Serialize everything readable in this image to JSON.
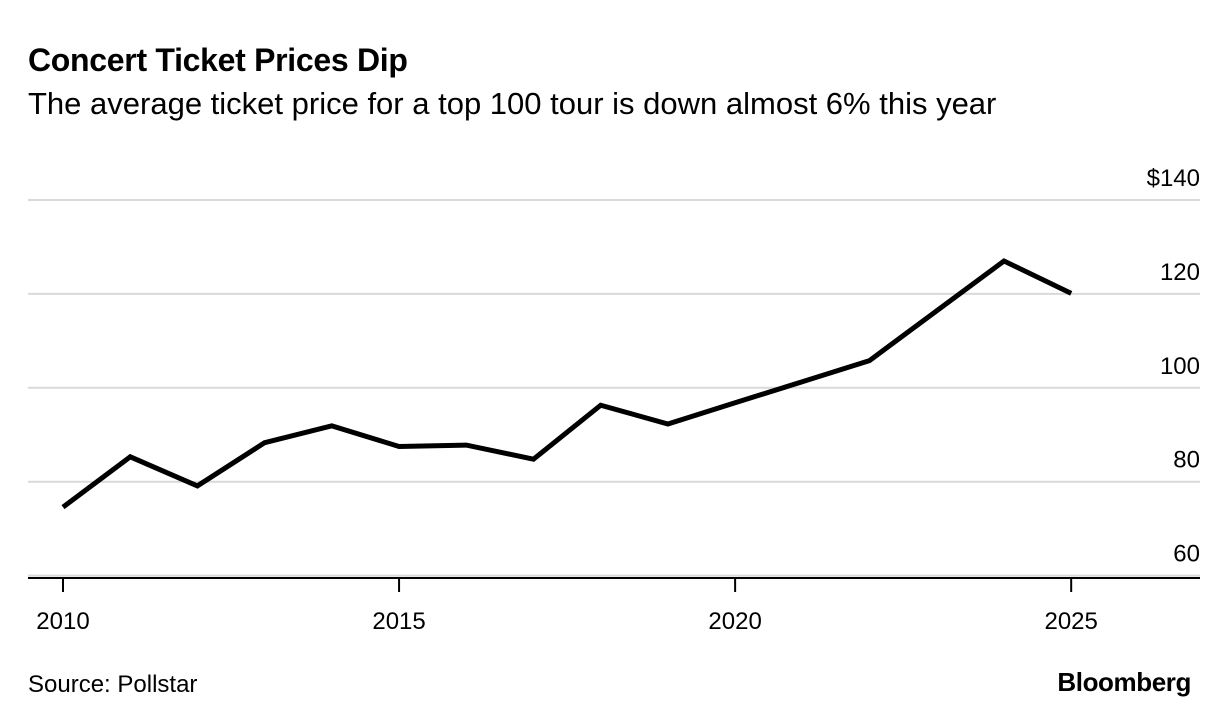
{
  "header": {
    "title": "Concert Ticket Prices Dip",
    "subtitle": "The average ticket price for a top 100 tour is down almost 6% this year"
  },
  "footer": {
    "source": "Source: Pollstar",
    "brand": "Bloomberg"
  },
  "colors": {
    "line": "#000000",
    "grid": "#d9d9d9",
    "axis": "#000000",
    "text": "#000000"
  },
  "chart_data": {
    "type": "line",
    "title": "Concert Ticket Prices Dip",
    "subtitle": "The average ticket price for a top 100 tour is down almost 6% this year",
    "xlabel": "",
    "ylabel": "",
    "x": [
      2010,
      2011,
      2012,
      2013,
      2014,
      2015,
      2016,
      2017,
      2018,
      2019,
      2020,
      2021,
      2022,
      2024,
      2025
    ],
    "series": [
      {
        "values": [
          74.6,
          85.3,
          79.1,
          88.3,
          91.9,
          87.5,
          87.8,
          84.8,
          96.3,
          92.3,
          96.8,
          101.3,
          105.8,
          127.0,
          120.1
        ]
      }
    ],
    "xlim": [
      2010,
      2026.5
    ],
    "ylim": [
      58,
      140
    ],
    "x_ticks": [
      2010,
      2015,
      2020,
      2025
    ],
    "x_tick_labels": [
      "2010",
      "2015",
      "2020",
      "2025"
    ],
    "y_ticks": [
      140,
      120,
      100,
      80,
      60
    ],
    "y_tick_labels": [
      "$140",
      "120",
      "100",
      "80",
      "60"
    ],
    "y_axis_side": "right",
    "grid": true,
    "legend": "none"
  }
}
